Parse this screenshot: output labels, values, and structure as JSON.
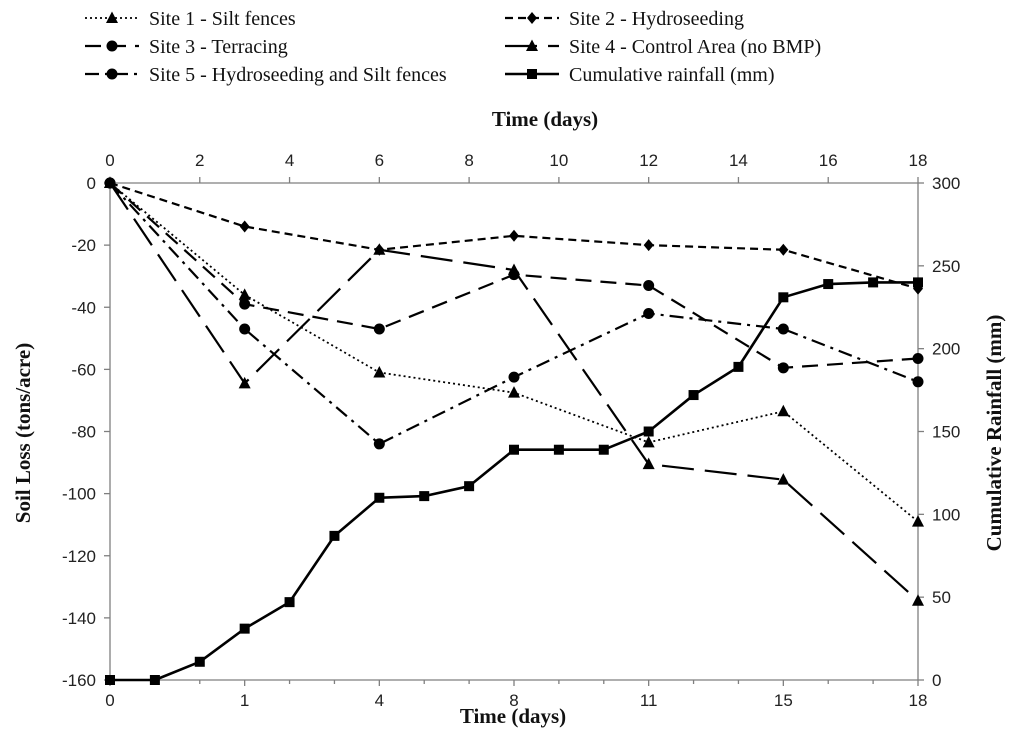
{
  "chart_data": {
    "type": "line",
    "x_top": {
      "title": "Time (days)",
      "ticks": [
        0,
        2,
        4,
        6,
        8,
        10,
        12,
        14,
        16,
        18
      ]
    },
    "x_bottom": {
      "title": "Time (days)",
      "categories": [
        "0",
        "1",
        "4",
        "8",
        "11",
        "15",
        "18"
      ]
    },
    "y_left": {
      "title": "Soil Loss (tons/acre)",
      "ticks": [
        0,
        -20,
        -40,
        -60,
        -80,
        -100,
        -120,
        -140,
        -160
      ],
      "ylim": [
        -160,
        0
      ]
    },
    "y_right": {
      "title": "Cumulative Rainfall (mm)",
      "ticks": [
        0,
        50,
        100,
        150,
        200,
        250,
        300
      ],
      "ylim": [
        0,
        300
      ]
    },
    "grid": false,
    "legend_position": "top",
    "series": [
      {
        "name": "Site 1 - Silt fences",
        "axis": "left",
        "x": [
          0,
          3,
          6,
          9,
          12,
          15,
          18
        ],
        "values": [
          0,
          -36,
          -61,
          -67.5,
          -83.5,
          -73.5,
          -109
        ],
        "style": "dotted",
        "marker": "triangle"
      },
      {
        "name": "Site 2 - Hydroseeding",
        "axis": "left",
        "x": [
          0,
          3,
          6,
          9,
          12,
          15,
          18
        ],
        "values": [
          0,
          -14,
          -21.5,
          -17,
          -20,
          -21.5,
          -34
        ],
        "style": "short-dash",
        "marker": "diamond"
      },
      {
        "name": "Site 3 - Terracing",
        "axis": "left",
        "x": [
          0,
          3,
          6,
          9,
          12,
          15,
          18
        ],
        "values": [
          0,
          -39,
          -47,
          -29.5,
          -33,
          -59.5,
          -56.5
        ],
        "style": "dash",
        "marker": "circle"
      },
      {
        "name": "Site 4 - Control Area (no BMP)",
        "axis": "left",
        "x": [
          0,
          3,
          6,
          9,
          12,
          15,
          18
        ],
        "values": [
          0,
          -64.5,
          -21.5,
          -28,
          -90.5,
          -95.5,
          -134.5
        ],
        "style": "long-dash",
        "marker": "triangle"
      },
      {
        "name": "Site 5 - Hydroseeding and Silt fences",
        "axis": "left",
        "x": [
          0,
          3,
          6,
          9,
          12,
          15,
          18
        ],
        "values": [
          0,
          -47,
          -84,
          -62.5,
          -42,
          -47,
          -64
        ],
        "style": "dash-dot",
        "marker": "circle"
      },
      {
        "name": "Cumulative rainfall (mm)",
        "axis": "right",
        "x": [
          0,
          1,
          2,
          3,
          4,
          5,
          6,
          7,
          8,
          9,
          10,
          11,
          12,
          13,
          14,
          15,
          16,
          17,
          18
        ],
        "values": [
          0,
          0,
          11,
          31,
          47,
          87,
          110,
          111,
          117,
          139,
          139,
          139,
          150,
          172,
          189,
          231,
          239,
          240,
          240
        ],
        "style": "solid",
        "marker": "square"
      }
    ]
  },
  "colors": {
    "line": "#000000",
    "axis": "#7f7f7f",
    "background": "#ffffff"
  }
}
